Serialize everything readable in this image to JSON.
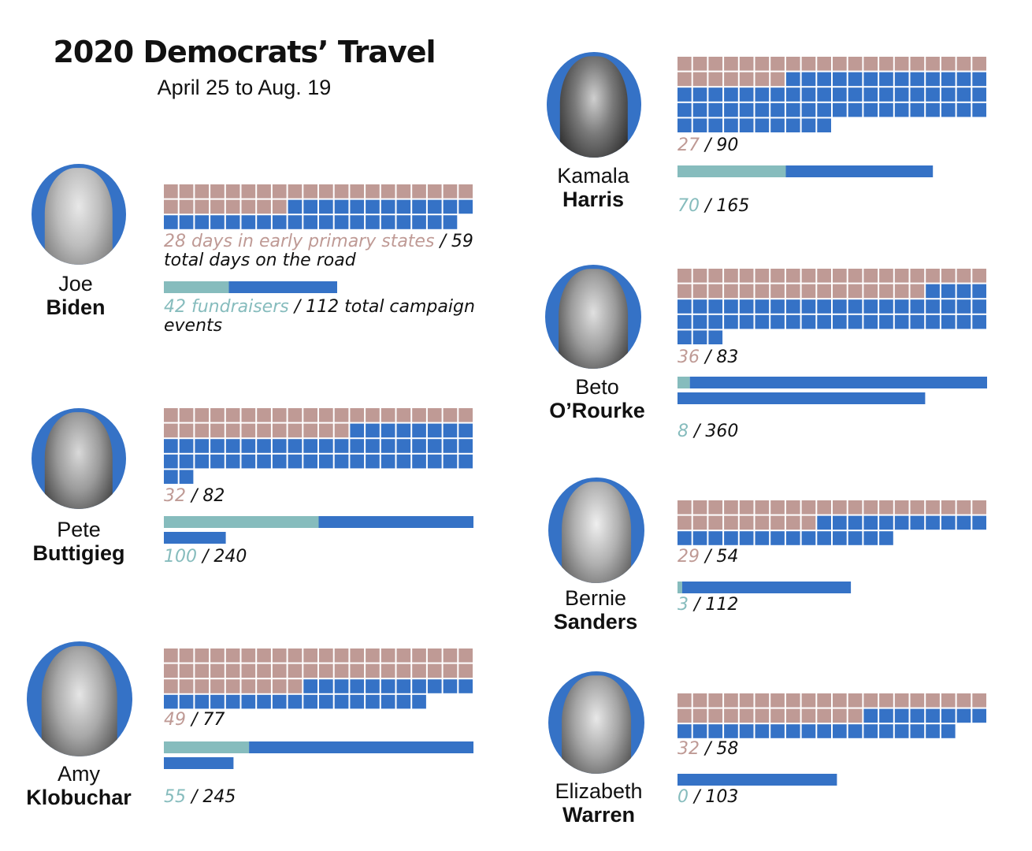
{
  "title": "2020 Democrats’ Travel",
  "subtitle": "April 25 to Aug. 19",
  "colors": {
    "early_days": "#bf9a95",
    "road_days": "#3572c6",
    "fundraisers": "#86bcbd",
    "events": "#3572c6",
    "ring": "#3572c6",
    "text": "#111111"
  },
  "legend": {
    "days_prefix": "28 days in early primary states",
    "days_suffix": "59 total days on the road",
    "events_prefix": "42 fundraisers",
    "events_suffix": "112 total campaign events"
  },
  "chart_data": {
    "type": "waffle",
    "series_names": [
      "days in early primary states",
      "total days on the road",
      "fundraisers",
      "total campaign events"
    ],
    "candidates": [
      {
        "first": "Joe",
        "last": "Biden",
        "early_days": 28,
        "total_days": 59,
        "fundraisers": 42,
        "total_events": 112
      },
      {
        "first": "Pete",
        "last": "Buttigieg",
        "early_days": 32,
        "total_days": 82,
        "fundraisers": 100,
        "total_events": 240
      },
      {
        "first": "Amy",
        "last": "Klobuchar",
        "early_days": 49,
        "total_days": 77,
        "fundraisers": 55,
        "total_events": 245
      },
      {
        "first": "Kamala",
        "last": "Harris",
        "early_days": 27,
        "total_days": 90,
        "fundraisers": 70,
        "total_events": 165
      },
      {
        "first": "Beto",
        "last": "O’Rourke",
        "early_days": 36,
        "total_days": 83,
        "fundraisers": 8,
        "total_events": 360
      },
      {
        "first": "Bernie",
        "last": "Sanders",
        "early_days": 29,
        "total_days": 54,
        "fundraisers": 3,
        "total_events": 112
      },
      {
        "first": "Elizabeth",
        "last": "Warren",
        "early_days": 32,
        "total_days": 58,
        "fundraisers": 0,
        "total_events": 103
      }
    ]
  },
  "labels": {
    "biden_days_a": "28 days in early primary states",
    "biden_days_b": "/ 59",
    "biden_days_c": "total days on the road",
    "biden_ev_a": "42 fundraisers",
    "biden_ev_b": "/ 112 total campaign",
    "biden_ev_c": "events",
    "buttigieg_days_a": "32",
    "buttigieg_days_b": "/ 82",
    "buttigieg_ev_a": "100",
    "buttigieg_ev_b": "/ 240",
    "klobuchar_days_a": "49",
    "klobuchar_days_b": "/ 77",
    "klobuchar_ev_a": "55",
    "klobuchar_ev_b": "/ 245",
    "harris_days_a": "27",
    "harris_days_b": "/ 90",
    "harris_ev_a": "70",
    "harris_ev_b": "/ 165",
    "orourke_days_a": "36",
    "orourke_days_b": "/ 83",
    "orourke_ev_a": "8",
    "orourke_ev_b": "/ 360",
    "sanders_days_a": "29",
    "sanders_days_b": "/ 54",
    "sanders_ev_a": "3",
    "sanders_ev_b": "/ 112",
    "warren_days_a": "32",
    "warren_days_b": "/ 58",
    "warren_ev_a": "0",
    "warren_ev_b": "/ 103"
  }
}
